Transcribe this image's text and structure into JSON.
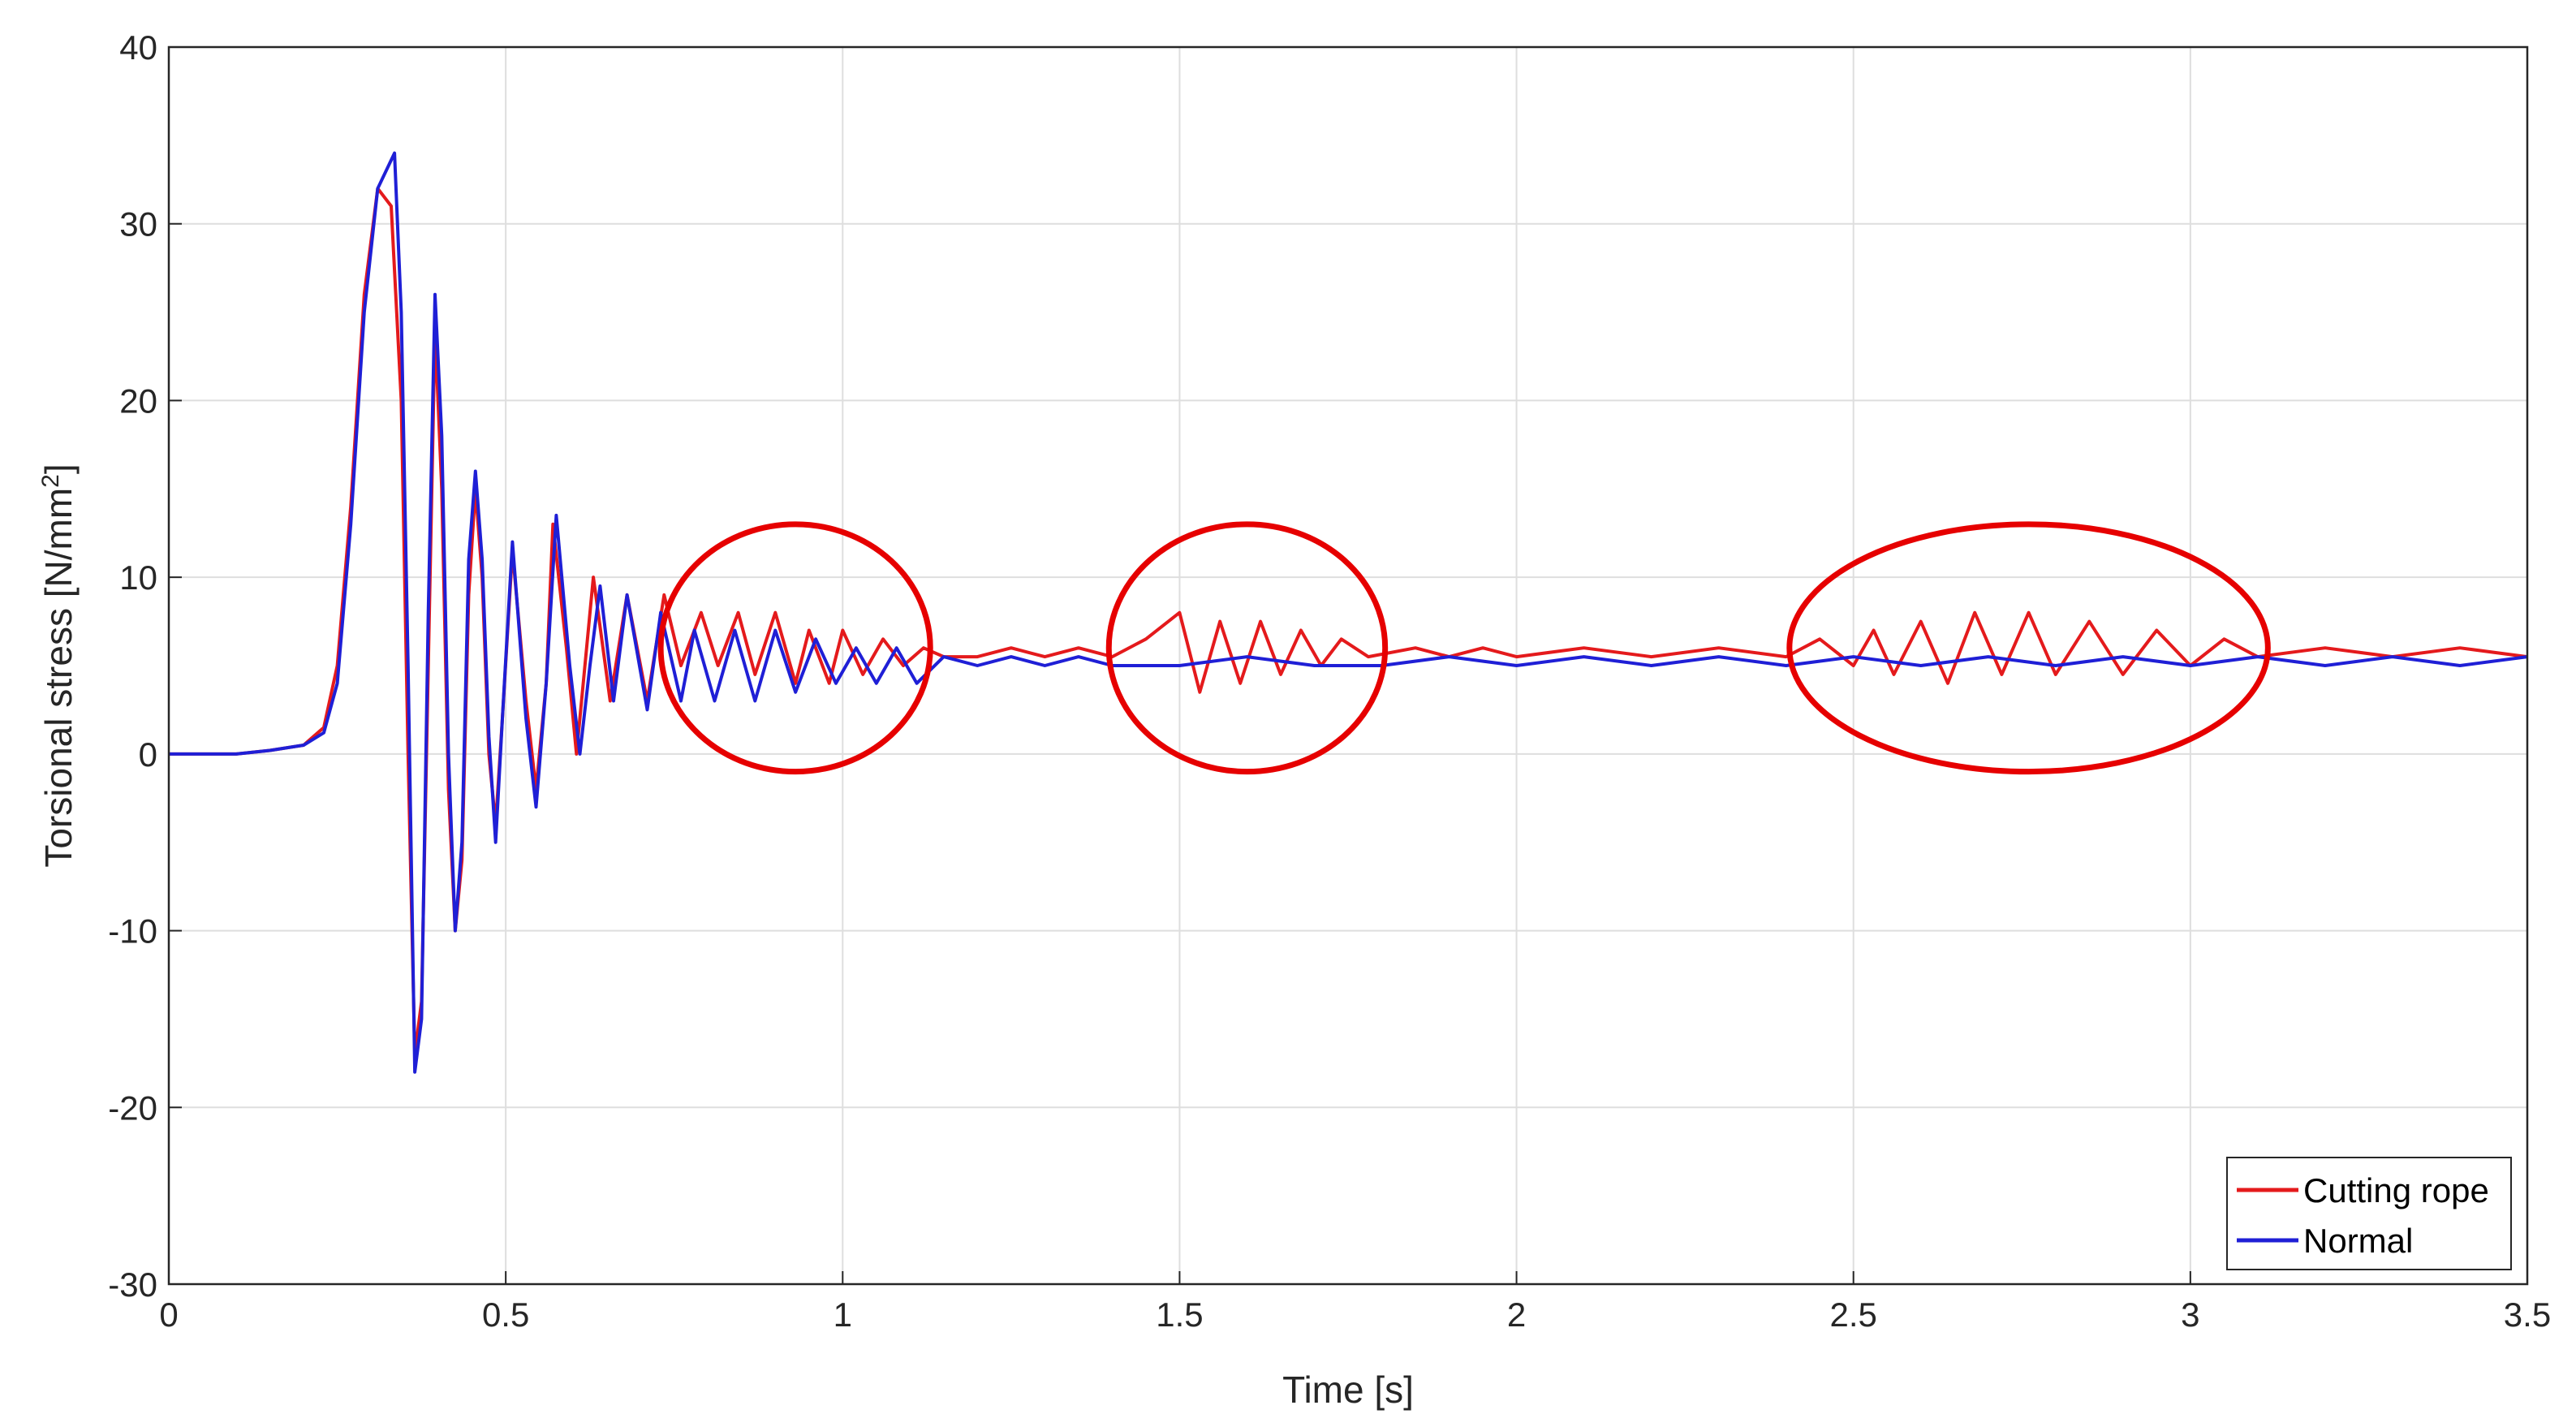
{
  "chart_data": {
    "type": "line",
    "title": "",
    "xlabel": "Time [s]",
    "ylabel_main": "Torsional stress [N/mm",
    "ylabel_sup": "2",
    "ylabel_end": "]",
    "xlim": [
      0,
      3.5
    ],
    "ylim": [
      -30,
      40
    ],
    "xticks": [
      0,
      0.5,
      1,
      1.5,
      2,
      2.5,
      3,
      3.5
    ],
    "xtick_labels": [
      "0",
      "0.5",
      "1",
      "1.5",
      "2",
      "2.5",
      "3",
      "3.5"
    ],
    "yticks": [
      -30,
      -20,
      -10,
      0,
      10,
      20,
      30,
      40
    ],
    "ytick_labels": [
      "-30",
      "-20",
      "-10",
      "0",
      "10",
      "20",
      "30",
      "40"
    ],
    "grid": true,
    "legend_position": "bottom-right",
    "series": [
      {
        "name": "Cutting rope",
        "color": "#e41a1c",
        "points": [
          [
            0,
            0
          ],
          [
            0.05,
            0
          ],
          [
            0.1,
            0
          ],
          [
            0.15,
            0.2
          ],
          [
            0.2,
            0.5
          ],
          [
            0.23,
            1.5
          ],
          [
            0.25,
            5
          ],
          [
            0.27,
            14
          ],
          [
            0.29,
            26
          ],
          [
            0.31,
            32
          ],
          [
            0.33,
            31
          ],
          [
            0.345,
            20
          ],
          [
            0.355,
            0
          ],
          [
            0.365,
            -17
          ],
          [
            0.375,
            -14
          ],
          [
            0.385,
            5
          ],
          [
            0.395,
            24
          ],
          [
            0.405,
            15
          ],
          [
            0.415,
            -2
          ],
          [
            0.425,
            -10
          ],
          [
            0.435,
            -6
          ],
          [
            0.445,
            9
          ],
          [
            0.455,
            15
          ],
          [
            0.465,
            10
          ],
          [
            0.475,
            0
          ],
          [
            0.485,
            -4
          ],
          [
            0.495,
            2
          ],
          [
            0.51,
            11.5
          ],
          [
            0.53,
            3
          ],
          [
            0.545,
            -2
          ],
          [
            0.56,
            4
          ],
          [
            0.57,
            13
          ],
          [
            0.59,
            6
          ],
          [
            0.605,
            0
          ],
          [
            0.62,
            6
          ],
          [
            0.63,
            10
          ],
          [
            0.655,
            3
          ],
          [
            0.68,
            9
          ],
          [
            0.71,
            3
          ],
          [
            0.735,
            9
          ],
          [
            0.76,
            5
          ],
          [
            0.79,
            8
          ],
          [
            0.815,
            5
          ],
          [
            0.845,
            8
          ],
          [
            0.87,
            4.5
          ],
          [
            0.9,
            8
          ],
          [
            0.93,
            4
          ],
          [
            0.95,
            7
          ],
          [
            0.98,
            4
          ],
          [
            1.0,
            7
          ],
          [
            1.03,
            4.5
          ],
          [
            1.06,
            6.5
          ],
          [
            1.09,
            5
          ],
          [
            1.12,
            6
          ],
          [
            1.15,
            5.5
          ],
          [
            1.2,
            5.5
          ],
          [
            1.25,
            6
          ],
          [
            1.3,
            5.5
          ],
          [
            1.35,
            6
          ],
          [
            1.4,
            5.5
          ],
          [
            1.45,
            6.5
          ],
          [
            1.5,
            8
          ],
          [
            1.53,
            3.5
          ],
          [
            1.56,
            7.5
          ],
          [
            1.59,
            4
          ],
          [
            1.62,
            7.5
          ],
          [
            1.65,
            4.5
          ],
          [
            1.68,
            7
          ],
          [
            1.71,
            5
          ],
          [
            1.74,
            6.5
          ],
          [
            1.78,
            5.5
          ],
          [
            1.85,
            6
          ],
          [
            1.9,
            5.5
          ],
          [
            1.95,
            6
          ],
          [
            2.0,
            5.5
          ],
          [
            2.1,
            6
          ],
          [
            2.2,
            5.5
          ],
          [
            2.3,
            6
          ],
          [
            2.4,
            5.5
          ],
          [
            2.45,
            6.5
          ],
          [
            2.5,
            5
          ],
          [
            2.53,
            7
          ],
          [
            2.56,
            4.5
          ],
          [
            2.6,
            7.5
          ],
          [
            2.64,
            4
          ],
          [
            2.68,
            8
          ],
          [
            2.72,
            4.5
          ],
          [
            2.76,
            8
          ],
          [
            2.8,
            4.5
          ],
          [
            2.85,
            7.5
          ],
          [
            2.9,
            4.5
          ],
          [
            2.95,
            7
          ],
          [
            3.0,
            5
          ],
          [
            3.05,
            6.5
          ],
          [
            3.1,
            5.5
          ],
          [
            3.2,
            6
          ],
          [
            3.3,
            5.5
          ],
          [
            3.4,
            6
          ],
          [
            3.5,
            5.5
          ]
        ]
      },
      {
        "name": "Normal",
        "color": "#1f1fd6",
        "points": [
          [
            0,
            0
          ],
          [
            0.05,
            0
          ],
          [
            0.1,
            0
          ],
          [
            0.15,
            0.2
          ],
          [
            0.2,
            0.5
          ],
          [
            0.23,
            1.2
          ],
          [
            0.25,
            4
          ],
          [
            0.27,
            13
          ],
          [
            0.29,
            25
          ],
          [
            0.31,
            32
          ],
          [
            0.335,
            34
          ],
          [
            0.345,
            25
          ],
          [
            0.355,
            5
          ],
          [
            0.365,
            -18
          ],
          [
            0.375,
            -15
          ],
          [
            0.385,
            8
          ],
          [
            0.395,
            26
          ],
          [
            0.405,
            18
          ],
          [
            0.415,
            0
          ],
          [
            0.425,
            -10
          ],
          [
            0.435,
            -5
          ],
          [
            0.445,
            11
          ],
          [
            0.455,
            16
          ],
          [
            0.465,
            11
          ],
          [
            0.475,
            1
          ],
          [
            0.485,
            -5
          ],
          [
            0.495,
            2
          ],
          [
            0.51,
            12
          ],
          [
            0.53,
            2
          ],
          [
            0.545,
            -3
          ],
          [
            0.56,
            4
          ],
          [
            0.575,
            13.5
          ],
          [
            0.595,
            5
          ],
          [
            0.61,
            0
          ],
          [
            0.625,
            5
          ],
          [
            0.64,
            9.5
          ],
          [
            0.66,
            3
          ],
          [
            0.68,
            9
          ],
          [
            0.71,
            2.5
          ],
          [
            0.73,
            8
          ],
          [
            0.76,
            3
          ],
          [
            0.78,
            7
          ],
          [
            0.81,
            3
          ],
          [
            0.84,
            7
          ],
          [
            0.87,
            3
          ],
          [
            0.9,
            7
          ],
          [
            0.93,
            3.5
          ],
          [
            0.96,
            6.5
          ],
          [
            0.99,
            4
          ],
          [
            1.02,
            6
          ],
          [
            1.05,
            4
          ],
          [
            1.08,
            6
          ],
          [
            1.11,
            4
          ],
          [
            1.15,
            5.5
          ],
          [
            1.2,
            5
          ],
          [
            1.25,
            5.5
          ],
          [
            1.3,
            5
          ],
          [
            1.35,
            5.5
          ],
          [
            1.4,
            5
          ],
          [
            1.5,
            5
          ],
          [
            1.6,
            5.5
          ],
          [
            1.7,
            5
          ],
          [
            1.8,
            5
          ],
          [
            1.9,
            5.5
          ],
          [
            2.0,
            5
          ],
          [
            2.1,
            5.5
          ],
          [
            2.2,
            5
          ],
          [
            2.3,
            5.5
          ],
          [
            2.4,
            5
          ],
          [
            2.5,
            5.5
          ],
          [
            2.6,
            5
          ],
          [
            2.7,
            5.5
          ],
          [
            2.8,
            5
          ],
          [
            2.9,
            5.5
          ],
          [
            3.0,
            5
          ],
          [
            3.1,
            5.5
          ],
          [
            3.2,
            5
          ],
          [
            3.3,
            5.5
          ],
          [
            3.4,
            5
          ],
          [
            3.5,
            5.5
          ]
        ]
      }
    ],
    "annotations": [
      {
        "shape": "ellipse",
        "color": "#e60000",
        "cx": 0.93,
        "cy": 6,
        "rx": 0.2,
        "ry": 7
      },
      {
        "shape": "ellipse",
        "color": "#e60000",
        "cx": 1.6,
        "cy": 6,
        "rx": 0.205,
        "ry": 7
      },
      {
        "shape": "ellipse",
        "color": "#e60000",
        "cx": 2.76,
        "cy": 6,
        "rx": 0.355,
        "ry": 7
      }
    ]
  }
}
